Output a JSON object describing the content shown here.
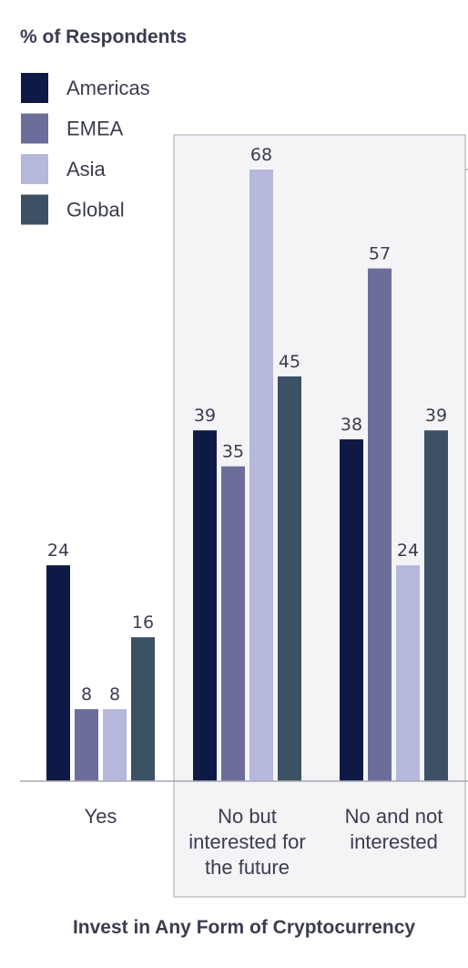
{
  "chart_data": {
    "type": "bar",
    "ylabel": "% of Respondents",
    "xlabel": "Invest in Any Form of Cryptocurrency",
    "categories": [
      [
        "Yes"
      ],
      [
        "No but",
        "interested for",
        "the future"
      ],
      [
        "No and not",
        "interested"
      ]
    ],
    "series": [
      {
        "name": "Americas",
        "color": "#0e1a45",
        "values": [
          24,
          39,
          38
        ]
      },
      {
        "name": "EMEA",
        "color": "#6b6d9a",
        "values": [
          8,
          35,
          57
        ]
      },
      {
        "name": "Asia",
        "color": "#b5b8da",
        "values": [
          8,
          68,
          24
        ]
      },
      {
        "name": "Global",
        "color": "#3c5163",
        "values": [
          16,
          45,
          39
        ]
      }
    ],
    "highlight_categories": [
      1,
      2
    ],
    "ylim": [
      0,
      75
    ],
    "grid": false,
    "legend_position": "top-left"
  }
}
